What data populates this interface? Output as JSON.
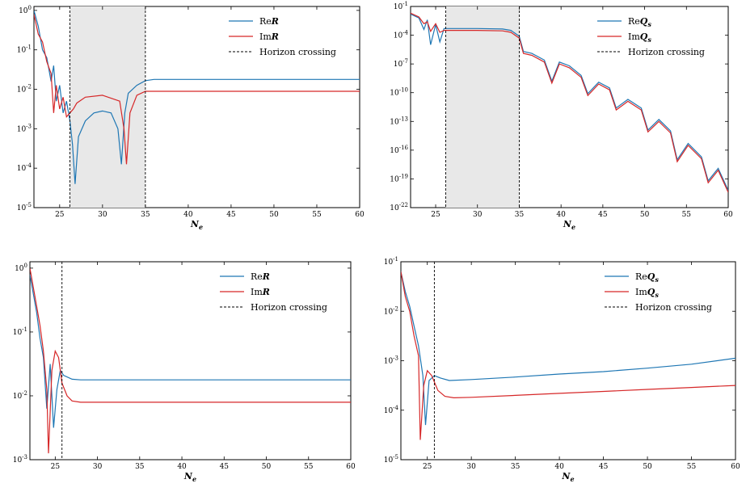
{
  "colors": {
    "re": "#1f77b4",
    "im": "#d62728",
    "shade": "#e8e8e8",
    "horizon": "#000000"
  },
  "chart_data": [
    {
      "type": "line",
      "xlabel": "N_e",
      "x_ticks": [
        "25",
        "30",
        "35",
        "40",
        "45",
        "50",
        "55",
        "60"
      ],
      "y_ticks": [
        "10^0",
        "10^-1",
        "10^-2",
        "10^-3",
        "10^-4",
        "10^-5"
      ],
      "xlim": [
        22,
        60
      ],
      "ylim_log10": [
        -5,
        0.1
      ],
      "y_scale": "log",
      "shaded_region": [
        26.2,
        35
      ],
      "vlines": [
        26.2,
        35
      ],
      "legend": [
        "ReR",
        "ImR",
        "Horizon crossing"
      ],
      "legend_loc": "upper right",
      "series": [
        {
          "name": "ReR",
          "color": "#1f77b4",
          "x": [
            22,
            22.5,
            23,
            23.5,
            24,
            24.3,
            24.6,
            25,
            25.4,
            25.8,
            26.2,
            26.5,
            26.8,
            27.2,
            28,
            29,
            30,
            31,
            31.8,
            32.2,
            32.6,
            33,
            34,
            35,
            36,
            40,
            50,
            60
          ],
          "log10y": [
            0,
            -0.4,
            -1,
            -1.2,
            -1.8,
            -1.4,
            -2.3,
            -1.9,
            -2.6,
            -2.3,
            -2.8,
            -3.4,
            -4.4,
            -3.2,
            -2.8,
            -2.6,
            -2.55,
            -2.6,
            -3,
            -3.9,
            -2.6,
            -2.1,
            -1.9,
            -1.78,
            -1.75,
            -1.75,
            -1.75,
            -1.75
          ]
        },
        {
          "name": "ImR",
          "color": "#d62728",
          "x": [
            22,
            22.5,
            23,
            23.5,
            24,
            24.3,
            24.6,
            25,
            25.4,
            25.8,
            26.2,
            26.6,
            27,
            28,
            30,
            32,
            32.5,
            32.8,
            33.2,
            34,
            35,
            40,
            50,
            60
          ],
          "log10y": [
            -0.1,
            -0.6,
            -0.8,
            -1.3,
            -1.6,
            -2.6,
            -1.9,
            -2.5,
            -2.2,
            -2.7,
            -2.6,
            -2.5,
            -2.35,
            -2.2,
            -2.15,
            -2.3,
            -3,
            -3.9,
            -2.6,
            -2.15,
            -2.05,
            -2.05,
            -2.05,
            -2.05
          ]
        }
      ]
    },
    {
      "type": "line",
      "xlabel": "N_e",
      "x_ticks": [
        "25",
        "30",
        "35",
        "40",
        "45",
        "50",
        "55",
        "60"
      ],
      "y_ticks": [
        "10^-1",
        "10^-4",
        "10^-7",
        "10^-10",
        "10^-13",
        "10^-16",
        "10^-19",
        "10^-22"
      ],
      "xlim": [
        22,
        60
      ],
      "ylim_log10": [
        -22,
        -1
      ],
      "y_scale": "log",
      "shaded_region": [
        26.2,
        35
      ],
      "vlines": [
        26.2,
        35
      ],
      "legend": [
        "ReQs",
        "ImQs",
        "Horizon crossing"
      ],
      "legend_loc": "upper right",
      "series": [
        {
          "name": "ReQs",
          "color": "#1f77b4",
          "x": [
            22,
            23,
            23.6,
            24,
            24.4,
            25,
            25.5,
            26,
            26.2,
            27,
            30,
            33,
            34,
            35,
            35.5,
            36.5,
            38,
            38.9,
            39.8,
            41,
            42.4,
            43.2,
            44.5,
            45.8,
            46.6,
            48,
            49.6,
            50.4,
            51.7,
            53.1,
            53.9,
            55.2,
            56.8,
            57.6,
            58.8,
            60
          ],
          "log10y": [
            -1.8,
            -2.2,
            -3.4,
            -2.4,
            -5,
            -2.9,
            -4.7,
            -3.3,
            -3.3,
            -3.3,
            -3.3,
            -3.35,
            -3.5,
            -4.1,
            -5.7,
            -5.9,
            -6.6,
            -8.8,
            -6.8,
            -7.2,
            -8.2,
            -10.1,
            -8.9,
            -9.5,
            -11.6,
            -10.7,
            -11.6,
            -13.9,
            -12.8,
            -14,
            -17,
            -15.3,
            -16.7,
            -19.2,
            -17.9,
            -20.2
          ]
        },
        {
          "name": "ImQs",
          "color": "#d62728",
          "x": [
            22,
            23,
            23.6,
            24,
            24.4,
            25,
            25.5,
            26,
            26.2,
            27,
            30,
            33,
            34,
            35,
            35.5,
            36.5,
            38,
            38.9,
            39.8,
            41,
            42.4,
            43.2,
            44.5,
            45.8,
            46.6,
            48,
            49.6,
            50.4,
            51.7,
            53.1,
            53.9,
            55.2,
            56.8,
            57.6,
            58.8,
            60
          ],
          "log10y": [
            -1.7,
            -2.1,
            -2.8,
            -2.6,
            -3.6,
            -2.8,
            -3.7,
            -3.5,
            -3.5,
            -3.5,
            -3.5,
            -3.55,
            -3.7,
            -4.3,
            -5.9,
            -6.1,
            -6.8,
            -9,
            -7,
            -7.4,
            -8.4,
            -10.3,
            -9.1,
            -9.7,
            -11.8,
            -10.9,
            -11.8,
            -14.1,
            -13,
            -14.2,
            -17.2,
            -15.5,
            -16.9,
            -19.4,
            -18.1,
            -20.4
          ]
        }
      ]
    },
    {
      "type": "line",
      "xlabel": "N_e",
      "x_ticks": [
        "25",
        "30",
        "35",
        "40",
        "45",
        "50",
        "55",
        "60"
      ],
      "y_ticks": [
        "10^0",
        "10^-1",
        "10^-2",
        "10^-3"
      ],
      "xlim": [
        22,
        60
      ],
      "ylim_log10": [
        -3,
        0.1
      ],
      "y_scale": "log",
      "vlines": [
        25.8
      ],
      "legend": [
        "ReR",
        "ImR",
        "Horizon crossing"
      ],
      "legend_loc": "upper right",
      "series": [
        {
          "name": "ReR",
          "color": "#1f77b4",
          "x": [
            22,
            22.4,
            22.8,
            23.2,
            23.6,
            24,
            24.4,
            24.8,
            25.2,
            25.6,
            26,
            27,
            28,
            30,
            40,
            50,
            60
          ],
          "log10y": [
            -0.1,
            -0.4,
            -0.7,
            -1.1,
            -1.4,
            -2.2,
            -1.5,
            -2.5,
            -1.9,
            -1.6,
            -1.68,
            -1.74,
            -1.75,
            -1.75,
            -1.75,
            -1.75,
            -1.75
          ]
        },
        {
          "name": "ImR",
          "color": "#d62728",
          "x": [
            22,
            22.4,
            22.8,
            23.2,
            23.6,
            24,
            24.2,
            24.6,
            25,
            25.4,
            25.8,
            26.4,
            27,
            28,
            30,
            40,
            50,
            60
          ],
          "log10y": [
            0,
            -0.3,
            -0.6,
            -0.9,
            -1.3,
            -1.9,
            -2.9,
            -1.6,
            -1.3,
            -1.4,
            -1.8,
            -2,
            -2.08,
            -2.1,
            -2.1,
            -2.1,
            -2.1,
            -2.1
          ]
        }
      ]
    },
    {
      "type": "line",
      "xlabel": "N_e",
      "x_ticks": [
        "25",
        "30",
        "35",
        "40",
        "45",
        "50",
        "55",
        "60"
      ],
      "y_ticks": [
        "10^-1",
        "10^-2",
        "10^-3",
        "10^-4",
        "10^-5"
      ],
      "xlim": [
        22,
        60
      ],
      "ylim_log10": [
        -5,
        -1
      ],
      "y_scale": "log",
      "vlines": [
        25.8
      ],
      "legend": [
        "ReQs",
        "ImQs",
        "Horizon crossing"
      ],
      "legend_loc": "upper right",
      "series": [
        {
          "name": "ReQs",
          "color": "#1f77b4",
          "x": [
            22,
            22.5,
            23,
            23.5,
            24,
            24.5,
            24.8,
            25.2,
            25.8,
            26.5,
            27.5,
            30,
            35,
            40,
            45,
            50,
            55,
            60
          ],
          "log10y": [
            -1.2,
            -1.6,
            -1.9,
            -2.3,
            -2.7,
            -3.3,
            -4.3,
            -3.4,
            -3.3,
            -3.35,
            -3.4,
            -3.38,
            -3.33,
            -3.27,
            -3.22,
            -3.15,
            -3.07,
            -2.95
          ]
        },
        {
          "name": "ImQs",
          "color": "#d62728",
          "x": [
            22,
            22.5,
            23,
            23.5,
            24,
            24.2,
            24.6,
            25,
            25.5,
            26.2,
            27,
            28,
            30,
            35,
            40,
            45,
            50,
            55,
            60
          ],
          "log10y": [
            -1.2,
            -1.7,
            -2,
            -2.5,
            -2.9,
            -4.6,
            -3.5,
            -3.2,
            -3.3,
            -3.6,
            -3.72,
            -3.75,
            -3.74,
            -3.7,
            -3.66,
            -3.62,
            -3.58,
            -3.54,
            -3.5
          ]
        }
      ]
    }
  ]
}
